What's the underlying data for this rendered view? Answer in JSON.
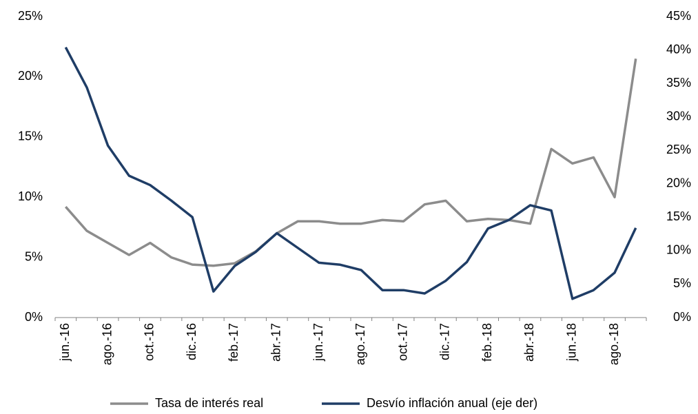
{
  "chart_data": {
    "type": "line",
    "categories": [
      "jun.-16",
      null,
      "ago.-16",
      null,
      "oct.-16",
      null,
      "dic.-16",
      null,
      "feb.-17",
      null,
      "abr.-17",
      null,
      "jun.-17",
      null,
      "ago.-17",
      null,
      "oct.-17",
      null,
      "dic.-17",
      null,
      "feb.-18",
      null,
      "abr.-18",
      null,
      "jun.-18",
      null,
      "ago.-18",
      null
    ],
    "series": [
      {
        "name": "Tasa de interés real",
        "color": "#8c8c8c",
        "values": [
          9.2,
          7.2,
          6.2,
          5.2,
          6.2,
          5.0,
          4.4,
          4.3,
          4.5,
          5.5,
          7.0,
          8.0,
          8.0,
          7.8,
          7.8,
          8.1,
          8.0,
          9.4,
          9.7,
          8.0,
          8.2,
          8.1,
          7.8,
          14.0,
          12.8,
          13.3,
          10.0,
          21.5
        ]
      },
      {
        "name": "Desvío inflación anual (eje der)",
        "color": "#1f3d66",
        "axis": "y2",
        "values": [
          40.4,
          34.4,
          25.7,
          21.2,
          19.8,
          17.5,
          15.0,
          3.9,
          7.7,
          9.8,
          12.6,
          10.4,
          8.2,
          7.9,
          7.1,
          4.1,
          4.1,
          3.6,
          5.5,
          8.3,
          13.3,
          14.6,
          16.8,
          16.0,
          2.8,
          4.1,
          6.7,
          13.4
        ]
      }
    ],
    "ylim": [
      0,
      25
    ],
    "yticks": [
      {
        "value": 0,
        "label": "0%"
      },
      {
        "value": 5,
        "label": "5%"
      },
      {
        "value": 10,
        "label": "10%"
      },
      {
        "value": 15,
        "label": "15%"
      },
      {
        "value": 20,
        "label": "20%"
      },
      {
        "value": 25,
        "label": "25%"
      }
    ],
    "y2lim": [
      0,
      45
    ],
    "y2ticks": [
      {
        "value": 0,
        "label": "0%"
      },
      {
        "value": 5,
        "label": "5%"
      },
      {
        "value": 10,
        "label": "10%"
      },
      {
        "value": 15,
        "label": "15%"
      },
      {
        "value": 20,
        "label": "20%"
      },
      {
        "value": 25,
        "label": "25%"
      },
      {
        "value": 30,
        "label": "30%"
      },
      {
        "value": 35,
        "label": "35%"
      },
      {
        "value": 40,
        "label": "40%"
      },
      {
        "value": 45,
        "label": "45%"
      }
    ],
    "legend": "bottom"
  }
}
